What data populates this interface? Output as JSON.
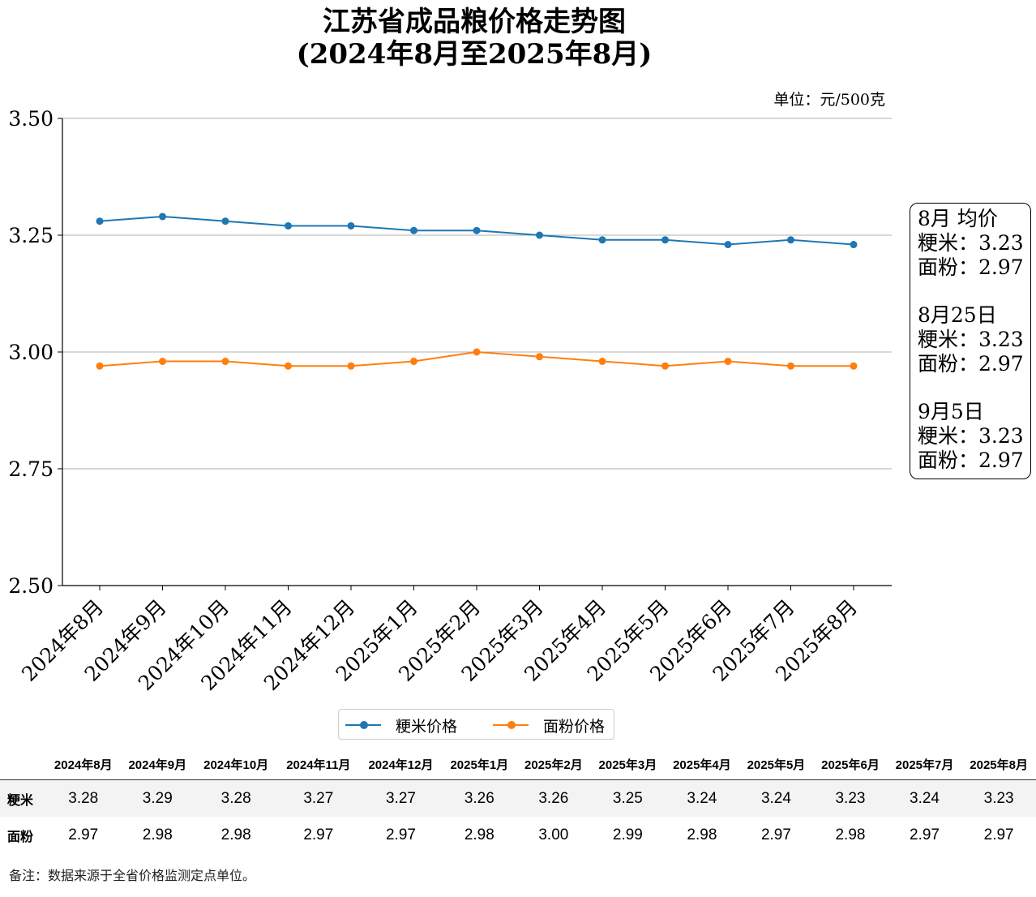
{
  "title_line1": "江苏省成品粮价格走势图",
  "title_line2": "(2024年8月至2025年8月)",
  "unit_label": "单位：元/500克",
  "side_box": {
    "avg_heading": "8月 均价",
    "avg_rice": "粳米：3.23",
    "avg_flour": "面粉：2.97",
    "d1_heading": "8月25日",
    "d1_rice": "粳米：3.23",
    "d1_flour": "面粉：2.97",
    "d2_heading": "9月5日",
    "d2_rice": "粳米：3.23",
    "d2_flour": "面粉：2.97"
  },
  "legend": {
    "rice": "粳米价格",
    "flour": "面粉价格"
  },
  "colors": {
    "rice": "#1f77b4",
    "flour": "#ff7f0e",
    "grid": "#b0b0b0"
  },
  "chart_data": {
    "type": "line",
    "categories": [
      "2024年8月",
      "2024年9月",
      "2024年10月",
      "2024年11月",
      "2024年12月",
      "2025年1月",
      "2025年2月",
      "2025年3月",
      "2025年4月",
      "2025年5月",
      "2025年6月",
      "2025年7月",
      "2025年8月"
    ],
    "series": [
      {
        "name": "粳米价格",
        "values": [
          3.28,
          3.29,
          3.28,
          3.27,
          3.27,
          3.26,
          3.26,
          3.25,
          3.24,
          3.24,
          3.23,
          3.24,
          3.23
        ]
      },
      {
        "name": "面粉价格",
        "values": [
          2.97,
          2.98,
          2.98,
          2.97,
          2.97,
          2.98,
          3.0,
          2.99,
          2.98,
          2.97,
          2.98,
          2.97,
          2.97
        ]
      }
    ],
    "ylim": [
      2.5,
      3.5
    ],
    "yticks": [
      "2.50",
      "2.75",
      "3.00",
      "3.25",
      "3.50"
    ],
    "grid": "horizontal",
    "legend_position": "bottom-center"
  },
  "table": {
    "row_labels": [
      "粳米",
      "面粉"
    ],
    "rows": [
      [
        "3.28",
        "3.29",
        "3.28",
        "3.27",
        "3.27",
        "3.26",
        "3.26",
        "3.25",
        "3.24",
        "3.24",
        "3.23",
        "3.24",
        "3.23"
      ],
      [
        "2.97",
        "2.98",
        "2.98",
        "2.97",
        "2.97",
        "2.98",
        "3.00",
        "2.99",
        "2.98",
        "2.97",
        "2.98",
        "2.97",
        "2.97"
      ]
    ]
  },
  "note": "备注：数据来源于全省价格监测定点单位。"
}
